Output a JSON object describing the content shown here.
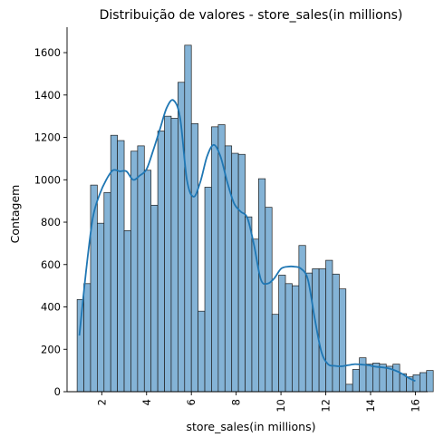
{
  "chart_data": {
    "type": "bar",
    "title": "Distribuição de valores - store_sales(in millions)",
    "xlabel": "store_sales(in millions)",
    "ylabel": "Contagem",
    "xlim": [
      0.45,
      16.55
    ],
    "ylim": [
      0,
      1720
    ],
    "x_ticks": [
      2,
      4,
      6,
      8,
      10,
      12,
      14,
      16
    ],
    "x_tick_rotation": 90,
    "y_ticks": [
      0,
      200,
      400,
      600,
      800,
      1000,
      1200,
      1400,
      1600
    ],
    "grid": false,
    "bar_color": "#84b3d6",
    "bar_edge_color": "#1f1f1f",
    "kde_color": "#1f77b4",
    "bins": {
      "start": 0.9,
      "width": 0.3,
      "counts": [
        435,
        510,
        975,
        795,
        940,
        1210,
        1185,
        760,
        1135,
        1160,
        1045,
        880,
        1230,
        1300,
        1290,
        1460,
        1635,
        1265,
        380,
        965,
        1250,
        1260,
        1160,
        1125,
        1120,
        825,
        720,
        1005,
        870,
        365,
        550,
        510,
        500,
        690,
        560,
        580,
        580,
        620,
        555,
        485,
        35,
        105,
        160,
        130,
        135,
        130,
        120,
        130,
        85,
        70,
        80,
        90,
        100
      ]
    },
    "kde": {
      "x": [
        1.0,
        1.3,
        1.6,
        1.9,
        2.2,
        2.5,
        2.8,
        3.1,
        3.4,
        3.7,
        4.0,
        4.3,
        4.6,
        4.9,
        5.2,
        5.5,
        5.8,
        6.1,
        6.4,
        6.7,
        7.0,
        7.3,
        7.6,
        7.9,
        8.2,
        8.5,
        8.8,
        9.1,
        9.4,
        9.7,
        10.0,
        10.3,
        10.6,
        10.9,
        11.2,
        11.5,
        11.8,
        12.1,
        12.4,
        12.7,
        13.0,
        13.3,
        13.6,
        13.9,
        14.2,
        14.5,
        14.8,
        15.1,
        15.4,
        15.7,
        16.0
      ],
      "y": [
        265,
        570,
        820,
        930,
        1000,
        1045,
        1040,
        1040,
        1000,
        1020,
        1050,
        1140,
        1240,
        1340,
        1375,
        1290,
        1000,
        920,
        990,
        1110,
        1165,
        1110,
        990,
        890,
        850,
        820,
        690,
        530,
        510,
        535,
        580,
        590,
        590,
        580,
        530,
        350,
        190,
        130,
        122,
        120,
        125,
        130,
        128,
        125,
        118,
        115,
        110,
        100,
        85,
        65,
        50
      ]
    }
  }
}
